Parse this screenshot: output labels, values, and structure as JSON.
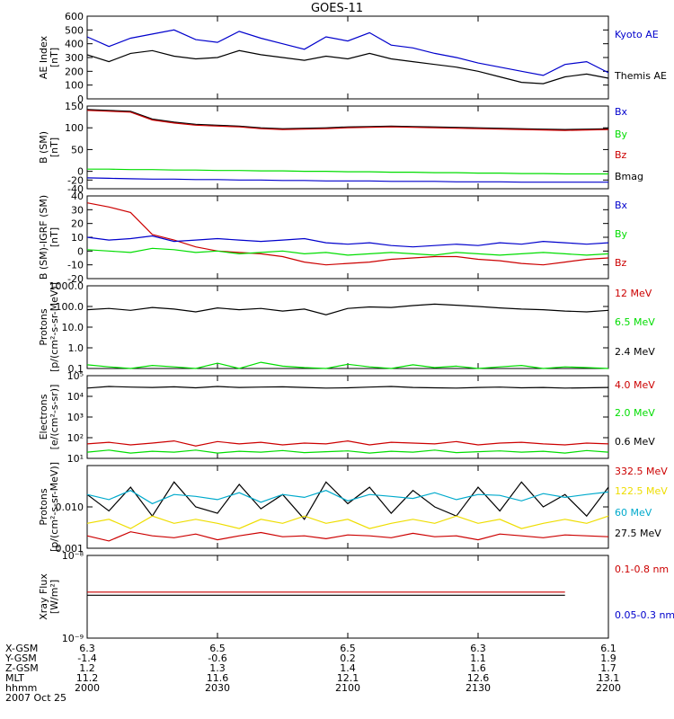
{
  "title": "GOES-11",
  "colors": {
    "black": "#000000",
    "blue": "#0000cc",
    "green": "#00dd00",
    "red": "#cc0000",
    "cyan": "#00aacc",
    "yellow": "#eedd00"
  },
  "chart_data": [
    {
      "type": "line",
      "id": "ae",
      "ylabel": [
        "AE Index",
        "[nT]"
      ],
      "ylim": [
        0,
        600
      ],
      "scale": "linear",
      "yticks": [
        0,
        100,
        200,
        300,
        400,
        500,
        600
      ],
      "ytick_labels": [
        "0",
        "100",
        "200",
        "300",
        "400",
        "500",
        "600"
      ],
      "legend": [
        {
          "label": "Kyoto AE",
          "color": "blue"
        },
        {
          "label": "Themis AE",
          "color": "black"
        }
      ],
      "x": [
        0,
        5,
        10,
        15,
        20,
        25,
        30,
        35,
        40,
        45,
        50,
        55,
        60,
        65,
        70,
        75,
        80,
        85,
        90,
        95,
        100,
        105,
        110,
        115,
        120
      ],
      "series": [
        {
          "color": "blue",
          "values": [
            450,
            380,
            440,
            470,
            500,
            430,
            410,
            490,
            440,
            400,
            360,
            450,
            420,
            480,
            390,
            370,
            330,
            300,
            260,
            230,
            200,
            170,
            250,
            270,
            190
          ]
        },
        {
          "color": "black",
          "values": [
            320,
            270,
            330,
            350,
            310,
            290,
            300,
            350,
            320,
            300,
            280,
            310,
            290,
            330,
            290,
            270,
            250,
            230,
            200,
            160,
            120,
            110,
            160,
            180,
            150
          ]
        }
      ]
    },
    {
      "type": "line",
      "id": "b",
      "ylabel": [
        "B (SM)",
        "[nT]"
      ],
      "ylim": [
        -40,
        150
      ],
      "scale": "linear",
      "yticks": [
        -40,
        -20,
        0,
        50,
        100,
        150
      ],
      "ytick_labels": [
        "-40",
        "-20",
        "0",
        "50",
        "100",
        "150"
      ],
      "legend": [
        {
          "label": "Bx",
          "color": "blue"
        },
        {
          "label": "By",
          "color": "green"
        },
        {
          "label": "Bz",
          "color": "red"
        },
        {
          "label": "Bmag",
          "color": "black"
        }
      ],
      "x": [
        0,
        5,
        10,
        15,
        20,
        25,
        30,
        35,
        40,
        45,
        50,
        55,
        60,
        65,
        70,
        75,
        80,
        85,
        90,
        95,
        100,
        105,
        110,
        115,
        120
      ],
      "series": [
        {
          "color": "black",
          "values": [
            142,
            140,
            138,
            120,
            113,
            108,
            106,
            104,
            100,
            98,
            99,
            100,
            102,
            103,
            104,
            103,
            102,
            101,
            100,
            99,
            98,
            97,
            96,
            97,
            98
          ]
        },
        {
          "color": "red",
          "values": [
            140,
            138,
            136,
            118,
            111,
            106,
            104,
            102,
            98,
            96,
            97,
            98,
            100,
            101,
            102,
            101,
            100,
            99,
            98,
            97,
            96,
            95,
            94,
            95,
            96
          ]
        },
        {
          "color": "green",
          "values": [
            5,
            5,
            4,
            4,
            3,
            3,
            2,
            2,
            1,
            1,
            0,
            0,
            -1,
            -1,
            -2,
            -2,
            -3,
            -3,
            -4,
            -4,
            -5,
            -5,
            -6,
            -6,
            -6
          ]
        },
        {
          "color": "blue",
          "values": [
            -15,
            -16,
            -17,
            -18,
            -18,
            -19,
            -19,
            -20,
            -20,
            -21,
            -21,
            -22,
            -22,
            -22,
            -23,
            -23,
            -23,
            -24,
            -24,
            -24,
            -25,
            -25,
            -25,
            -25,
            -25
          ]
        }
      ]
    },
    {
      "type": "line",
      "id": "db",
      "ylabel": [
        "B (SM)-IGRF (SM)",
        "[nT]"
      ],
      "ylim": [
        -20,
        40
      ],
      "scale": "linear",
      "yticks": [
        -20,
        -10,
        0,
        10,
        20,
        30,
        40
      ],
      "ytick_labels": [
        "-20",
        "-10",
        "0",
        "10",
        "20",
        "30",
        "40"
      ],
      "legend": [
        {
          "label": "Bx",
          "color": "blue"
        },
        {
          "label": "By",
          "color": "green"
        },
        {
          "label": "Bz",
          "color": "red"
        }
      ],
      "x": [
        0,
        5,
        10,
        15,
        20,
        25,
        30,
        35,
        40,
        45,
        50,
        55,
        60,
        65,
        70,
        75,
        80,
        85,
        90,
        95,
        100,
        105,
        110,
        115,
        120
      ],
      "series": [
        {
          "color": "red",
          "values": [
            35,
            32,
            28,
            12,
            8,
            3,
            0,
            -1,
            -2,
            -4,
            -8,
            -10,
            -9,
            -8,
            -6,
            -5,
            -4,
            -4,
            -6,
            -7,
            -9,
            -10,
            -8,
            -6,
            -5
          ]
        },
        {
          "color": "blue",
          "values": [
            10,
            8,
            9,
            11,
            7,
            8,
            9,
            8,
            7,
            8,
            9,
            6,
            5,
            6,
            4,
            3,
            4,
            5,
            4,
            6,
            5,
            7,
            6,
            5,
            6
          ]
        },
        {
          "color": "green",
          "values": [
            1,
            0,
            -1,
            2,
            1,
            -1,
            0,
            -2,
            -1,
            0,
            -2,
            -1,
            -3,
            -2,
            -1,
            -2,
            -3,
            -1,
            -2,
            -3,
            -2,
            -1,
            -2,
            -3,
            -2
          ]
        }
      ]
    },
    {
      "type": "line",
      "id": "protons1",
      "ylabel": [
        "Protons",
        "[p/(cm²-s-sr-MeV)]"
      ],
      "ylim": [
        0.1,
        1000
      ],
      "scale": "log",
      "yticks": [
        0.1,
        1,
        10,
        100,
        1000
      ],
      "ytick_labels": [
        "0.1",
        "1.0",
        "10.0",
        "100.0",
        "1000.0"
      ],
      "legend": [
        {
          "label": "12 MeV",
          "color": "red"
        },
        {
          "label": "6.5 MeV",
          "color": "green"
        },
        {
          "label": "2.4 MeV",
          "color": "black"
        }
      ],
      "x": [
        0,
        5,
        10,
        15,
        20,
        25,
        30,
        35,
        40,
        45,
        50,
        55,
        60,
        65,
        70,
        75,
        80,
        85,
        90,
        95,
        100,
        105,
        110,
        115,
        120
      ],
      "series": [
        {
          "color": "black",
          "values": [
            70,
            80,
            65,
            90,
            75,
            55,
            85,
            70,
            80,
            60,
            75,
            40,
            80,
            95,
            90,
            110,
            130,
            115,
            100,
            85,
            75,
            70,
            60,
            55,
            65
          ]
        },
        {
          "color": "green",
          "values": [
            0.15,
            0.12,
            0.1,
            0.14,
            0.12,
            0.1,
            0.18,
            0.1,
            0.2,
            0.13,
            0.11,
            0.1,
            0.16,
            0.12,
            0.1,
            0.15,
            0.11,
            0.13,
            0.1,
            0.12,
            0.14,
            0.1,
            0.12,
            0.11,
            0.1
          ]
        }
      ]
    },
    {
      "type": "line",
      "id": "electrons",
      "ylabel": [
        "Electrons",
        "[e/(cm²-s-sr)]"
      ],
      "ylim": [
        10,
        100000
      ],
      "scale": "log",
      "yticks": [
        10,
        100,
        1000,
        10000,
        100000
      ],
      "ytick_labels": [
        "10¹",
        "10²",
        "10³",
        "10⁴",
        "10⁵"
      ],
      "legend": [
        {
          "label": "4.0 MeV",
          "color": "red"
        },
        {
          "label": "2.0 MeV",
          "color": "green"
        },
        {
          "label": "0.6 MeV",
          "color": "black"
        }
      ],
      "x": [
        0,
        5,
        10,
        15,
        20,
        25,
        30,
        35,
        40,
        45,
        50,
        55,
        60,
        65,
        70,
        75,
        80,
        85,
        90,
        95,
        100,
        105,
        110,
        115,
        120
      ],
      "series": [
        {
          "color": "black",
          "values": [
            25000,
            30000,
            28000,
            27000,
            29000,
            26000,
            30000,
            27000,
            28000,
            29000,
            27000,
            25000,
            26000,
            28000,
            30000,
            27000,
            26000,
            25000,
            27000,
            28000,
            26000,
            27000,
            25000,
            26000,
            27000
          ]
        },
        {
          "color": "red",
          "values": [
            50,
            60,
            45,
            55,
            70,
            40,
            65,
            50,
            60,
            45,
            55,
            50,
            70,
            45,
            60,
            55,
            50,
            65,
            45,
            55,
            60,
            50,
            45,
            55,
            50
          ]
        },
        {
          "color": "green",
          "values": [
            20,
            25,
            18,
            22,
            20,
            25,
            18,
            22,
            20,
            24,
            19,
            21,
            23,
            18,
            22,
            20,
            25,
            19,
            21,
            23,
            20,
            22,
            18,
            24,
            20
          ]
        }
      ]
    },
    {
      "type": "line",
      "id": "protons2",
      "ylabel": [
        "Protons",
        "[p/(cm²-s-sr-MeV)]"
      ],
      "ylim": [
        0.001,
        0.1
      ],
      "scale": "log",
      "yticks": [
        0.001,
        0.01
      ],
      "ytick_labels": [
        "0.001",
        "0.010"
      ],
      "legend": [
        {
          "label": "332.5 MeV",
          "color": "red"
        },
        {
          "label": "122.5 MeV",
          "color": "yellow"
        },
        {
          "label": "60 MeV",
          "color": "cyan"
        },
        {
          "label": "27.5 MeV",
          "color": "black"
        }
      ],
      "x": [
        0,
        5,
        10,
        15,
        20,
        25,
        30,
        35,
        40,
        45,
        50,
        55,
        60,
        65,
        70,
        75,
        80,
        85,
        90,
        95,
        100,
        105,
        110,
        115,
        120
      ],
      "series": [
        {
          "color": "black",
          "values": [
            0.02,
            0.008,
            0.03,
            0.006,
            0.04,
            0.01,
            0.007,
            0.035,
            0.009,
            0.02,
            0.005,
            0.04,
            0.012,
            0.03,
            0.007,
            0.025,
            0.01,
            0.006,
            0.03,
            0.008,
            0.04,
            0.01,
            0.02,
            0.006,
            0.03
          ]
        },
        {
          "color": "cyan",
          "values": [
            0.02,
            0.015,
            0.025,
            0.012,
            0.02,
            0.018,
            0.015,
            0.022,
            0.013,
            0.02,
            0.017,
            0.025,
            0.014,
            0.02,
            0.018,
            0.016,
            0.022,
            0.015,
            0.02,
            0.019,
            0.014,
            0.021,
            0.017,
            0.02,
            0.023
          ]
        },
        {
          "color": "yellow",
          "values": [
            0.004,
            0.005,
            0.003,
            0.006,
            0.004,
            0.005,
            0.004,
            0.003,
            0.005,
            0.004,
            0.006,
            0.004,
            0.005,
            0.003,
            0.004,
            0.005,
            0.004,
            0.006,
            0.004,
            0.005,
            0.003,
            0.004,
            0.005,
            0.004,
            0.006
          ]
        },
        {
          "color": "red",
          "values": [
            0.002,
            0.0015,
            0.0025,
            0.002,
            0.0018,
            0.0022,
            0.0016,
            0.002,
            0.0024,
            0.0019,
            0.002,
            0.0017,
            0.0021,
            0.002,
            0.0018,
            0.0023,
            0.0019,
            0.002,
            0.0016,
            0.0022,
            0.002,
            0.0018,
            0.0021,
            0.002,
            0.0019
          ]
        }
      ]
    },
    {
      "type": "line",
      "id": "xray",
      "ylabel": [
        "Xray Flux",
        "[W/m²]"
      ],
      "ylim": [
        1e-09,
        1e-08
      ],
      "scale": "log",
      "yticks": [
        1e-09,
        1e-08
      ],
      "ytick_labels": [
        "10⁻⁹",
        "10⁻⁸"
      ],
      "legend": [
        {
          "label": "0.1-0.8 nm",
          "color": "red"
        },
        {
          "label": "0.05-0.3 nm",
          "color": "blue"
        }
      ],
      "x": [
        0,
        110,
        115,
        120
      ],
      "series": [
        {
          "color": "red",
          "values": [
            3.6e-09,
            3.6e-09,
            null,
            3.6e-09
          ]
        },
        {
          "color": "black",
          "values": [
            3.3e-09,
            3.3e-09,
            null,
            3.3e-09
          ]
        }
      ]
    }
  ],
  "xaxis": {
    "rows": [
      {
        "label": "X-GSM",
        "values": [
          "6.3",
          "6.5",
          "6.5",
          "6.3",
          "6.1"
        ]
      },
      {
        "label": "Y-GSM",
        "values": [
          "-1.4",
          "-0.6",
          "0.2",
          "1.1",
          "1.9"
        ]
      },
      {
        "label": "Z-GSM",
        "values": [
          "1.2",
          "1.3",
          "1.4",
          "1.6",
          "1.7"
        ]
      },
      {
        "label": "MLT",
        "values": [
          "11.2",
          "11.6",
          "12.1",
          "12.6",
          "13.1"
        ]
      },
      {
        "label": "hhmm",
        "values": [
          "2000",
          "2030",
          "2100",
          "2130",
          "2200"
        ]
      }
    ],
    "date": "2007 Oct 25"
  }
}
